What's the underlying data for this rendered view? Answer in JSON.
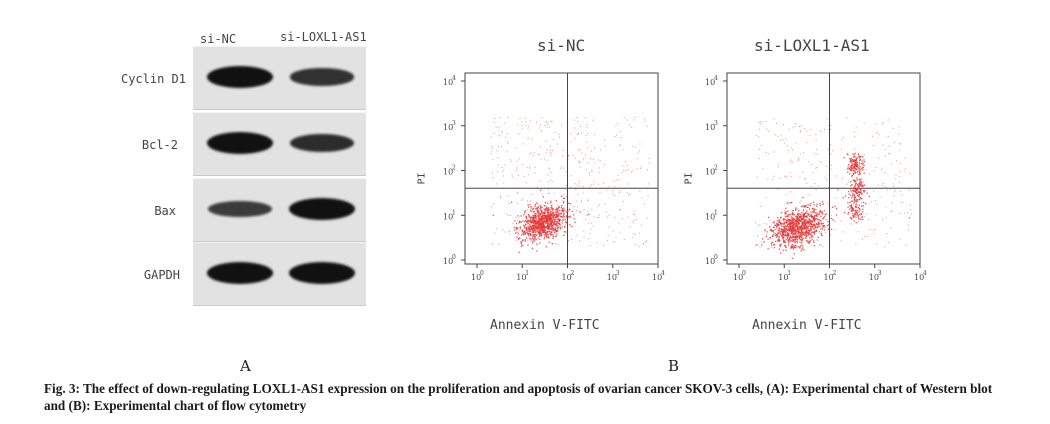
{
  "panel_a": {
    "letter": "A",
    "lanes": [
      "si-NC",
      "si-LOXL1-AS1"
    ],
    "rows": [
      {
        "label": "Cyclin D1",
        "intensities": [
          1.0,
          0.65
        ]
      },
      {
        "label": "Bcl-2",
        "intensities": [
          1.0,
          0.7
        ]
      },
      {
        "label": "Bax",
        "intensities": [
          0.55,
          1.0
        ]
      },
      {
        "label": "GAPDH",
        "intensities": [
          1.0,
          1.0
        ]
      }
    ]
  },
  "panel_b": {
    "letter": "B",
    "plots": [
      {
        "title": "si-NC",
        "xlabel": "Annexin V-FITC",
        "ylabel": "PI"
      },
      {
        "title": "si-LOXL1-AS1",
        "xlabel": "Annexin V-FITC",
        "ylabel": "PI"
      }
    ],
    "axis_ticks": [
      "10^0",
      "10^1",
      "10^2",
      "10^3",
      "10^4"
    ],
    "gate": {
      "x": 100,
      "y": 40
    }
  },
  "caption": "Fig. 3: The effect of down-regulating LOXL1-AS1 expression on the proliferation and apoptosis of ovarian cancer SKOV-3 cells, (A): Experimental chart of Western blot and (B): Experimental chart of flow cytometry",
  "colors": {
    "dots": "#e23a3a",
    "band": "#111111"
  }
}
